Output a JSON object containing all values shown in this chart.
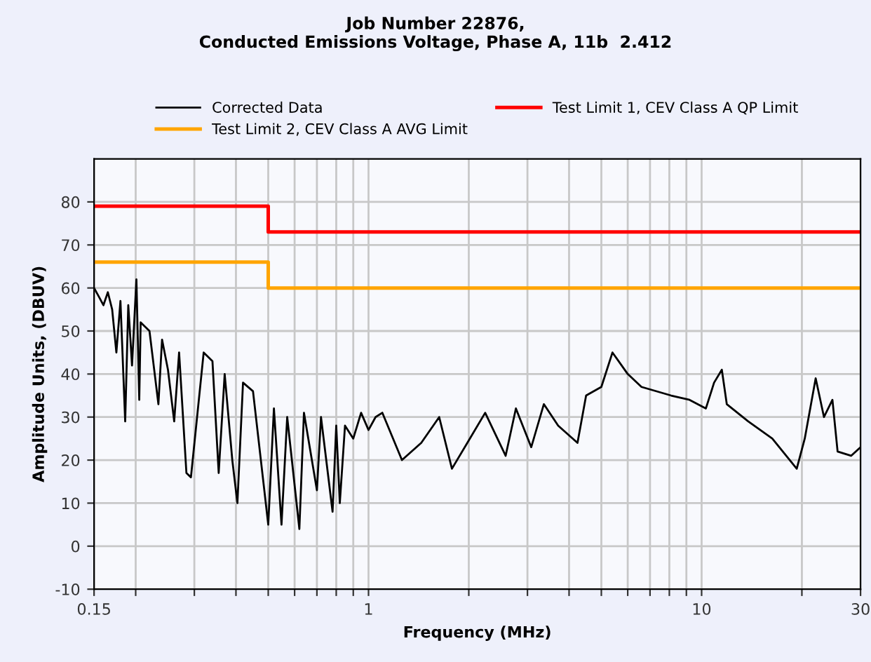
{
  "chart_data": {
    "type": "line",
    "title": "Job Number 22876,\nConducted Emissions Voltage, Phase A, 11b  2.412",
    "xlabel": "Frequency (MHz)",
    "ylabel": "Amplitude Units, (DBUV)",
    "series": [
      {
        "name": "Corrected Data",
        "color": "#000000",
        "x": [
          0.15,
          0.155,
          0.16,
          0.165,
          0.17,
          0.175,
          0.18,
          0.186,
          0.19,
          0.195,
          0.201,
          0.205,
          0.207,
          0.22,
          0.234,
          0.24,
          0.25,
          0.261,
          0.27,
          0.284,
          0.293,
          0.32,
          0.34,
          0.355,
          0.37,
          0.39,
          0.404,
          0.42,
          0.45,
          0.5,
          0.52,
          0.548,
          0.57,
          0.62,
          0.64,
          0.7,
          0.72,
          0.78,
          0.8,
          0.82,
          0.85,
          0.9,
          0.95,
          1.0,
          1.05,
          1.1,
          1.26,
          1.44,
          1.63,
          1.78,
          1.98,
          2.24,
          2.58,
          2.77,
          3.08,
          3.36,
          3.71,
          4.24,
          4.5,
          5.0,
          5.4,
          6.0,
          6.6,
          8.1,
          9.2,
          10.3,
          10.9,
          11.5,
          11.9,
          13.8,
          16.3,
          19.3,
          20.4,
          22.0,
          23.3,
          24.7,
          25.6,
          28.1,
          30
        ],
        "values": [
          60,
          58,
          56,
          59,
          55,
          45,
          57,
          29,
          56,
          42,
          62,
          34,
          52,
          50,
          33,
          48,
          41,
          29,
          45,
          17,
          16,
          45,
          43,
          17,
          40,
          20,
          10,
          38,
          36,
          5,
          32,
          5,
          30,
          4,
          31,
          13,
          30,
          8,
          28,
          10,
          28,
          25,
          31,
          27,
          30,
          31,
          20,
          24,
          30,
          18,
          24,
          31,
          21,
          32,
          23,
          33,
          28,
          24,
          35,
          37,
          45,
          40,
          37,
          35,
          34,
          32,
          38,
          41,
          33,
          29,
          25,
          18,
          25,
          39,
          30,
          34,
          22,
          21,
          23
        ]
      },
      {
        "name": "Test Limit 1, CEV Class A QP Limit",
        "color": "#ff0000",
        "type": "step",
        "x": [
          0.15,
          0.5,
          30
        ],
        "values": [
          79,
          73,
          73
        ]
      },
      {
        "name": "Test Limit 2, CEV Class A AVG Limit",
        "color": "#ffa500",
        "type": "step",
        "x": [
          0.15,
          0.5,
          30
        ],
        "values": [
          66,
          60,
          60
        ]
      }
    ],
    "log": "x",
    "xlim": [
      0.15,
      30
    ],
    "ylim": [
      -10,
      90
    ],
    "xticks": [
      0.15,
      {
        "value": 0.2,
        "label": null
      },
      {
        "value": 0.3,
        "label": null
      },
      {
        "value": 0.4,
        "label": null
      },
      {
        "value": 0.5,
        "label": null
      },
      {
        "value": 0.6,
        "label": null
      },
      {
        "value": 0.7,
        "label": null
      },
      {
        "value": 0.8,
        "label": null
      },
      {
        "value": 0.9,
        "label": null
      },
      1,
      {
        "value": 2,
        "label": null
      },
      {
        "value": 3,
        "label": null
      },
      {
        "value": 4,
        "label": null
      },
      {
        "value": 5,
        "label": null
      },
      {
        "value": 6,
        "label": null
      },
      {
        "value": 7,
        "label": null
      },
      {
        "value": 8,
        "label": null
      },
      {
        "value": 9,
        "label": null
      },
      10,
      {
        "value": 20,
        "label": null
      },
      30
    ],
    "yticks": [
      -10,
      0,
      10,
      20,
      30,
      40,
      50,
      60,
      70,
      80
    ],
    "grid": true,
    "legend": "top",
    "marker": "none",
    "line_style": "solid"
  }
}
